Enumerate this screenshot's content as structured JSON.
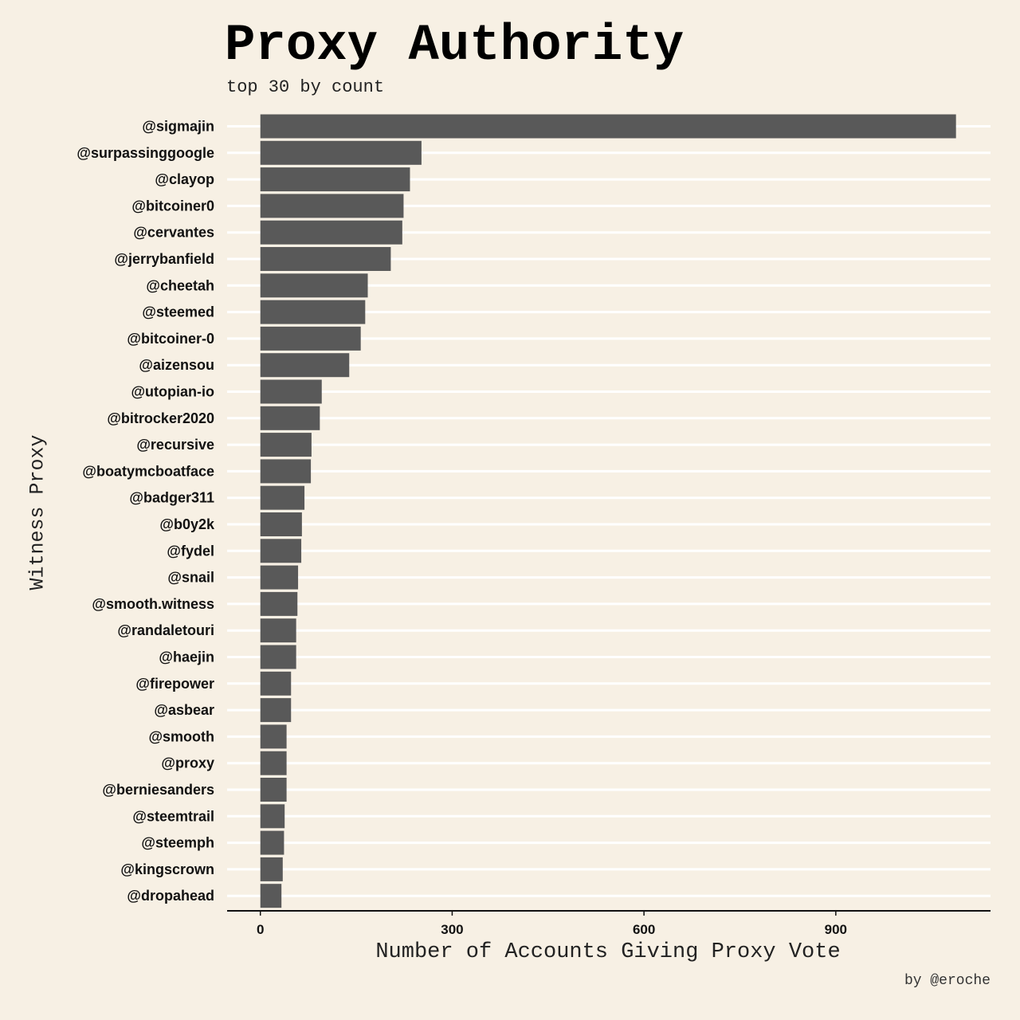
{
  "chart_data": {
    "type": "bar",
    "orientation": "horizontal",
    "title": "Proxy Authority",
    "subtitle": "top 30 by count",
    "xlabel": "Number of Accounts Giving Proxy Vote",
    "ylabel": "Witness Proxy",
    "caption": "by @eroche",
    "categories": [
      "@sigmajin",
      "@surpassinggoogle",
      "@clayop",
      "@bitcoiner0",
      "@cervantes",
      "@jerrybanfield",
      "@cheetah",
      "@steemed",
      "@bitcoiner-0",
      "@aizensou",
      "@utopian-io",
      "@bitrocker2020",
      "@recursive",
      "@boatymcboatface",
      "@badger311",
      "@b0y2k",
      "@fydel",
      "@snail",
      "@smooth.witness",
      "@randaletouri",
      "@haejin",
      "@firepower",
      "@asbear",
      "@smooth",
      "@proxy",
      "@berniesanders",
      "@steemtrail",
      "@steemph",
      "@kingscrown",
      "@dropahead"
    ],
    "values": [
      1088,
      252,
      234,
      224,
      222,
      204,
      168,
      164,
      157,
      139,
      96,
      93,
      80,
      79,
      69,
      65,
      64,
      59,
      58,
      56,
      56,
      48,
      48,
      41,
      41,
      41,
      38,
      37,
      35,
      33
    ],
    "xlim": [
      -52,
      1142
    ],
    "xticks": [
      0,
      300,
      600,
      900
    ],
    "grid": "horizontal",
    "bar_color": "#595959",
    "background_color": "#f7f0e4",
    "grid_color": "#ffffff"
  }
}
